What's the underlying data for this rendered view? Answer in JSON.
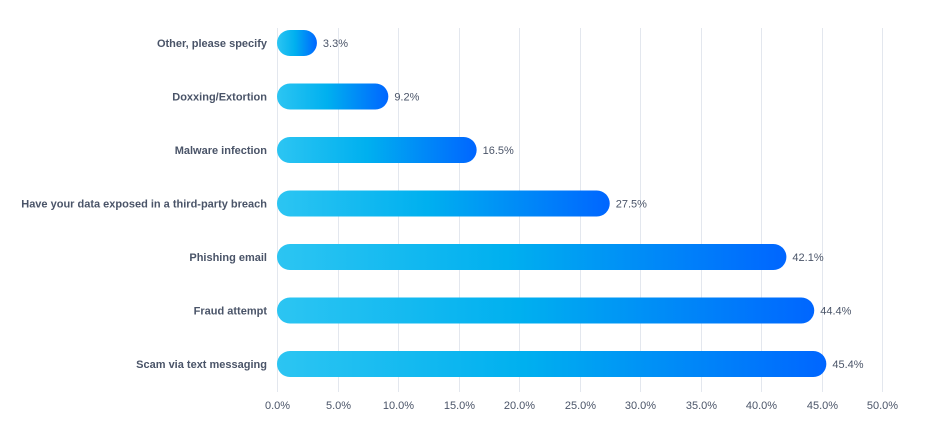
{
  "chart_data": {
    "type": "bar",
    "orientation": "horizontal",
    "title": "",
    "xlabel": "",
    "ylabel": "",
    "categories": [
      "Other, please specify",
      "Doxxing/Extortion",
      "Malware infection",
      "Have your data exposed in a third-party breach",
      "Phishing email",
      "Fraud attempt",
      "Scam via text messaging"
    ],
    "values": [
      3.3,
      9.2,
      16.5,
      27.5,
      42.1,
      44.4,
      45.4
    ],
    "value_labels": [
      "3.3%",
      "9.2%",
      "16.5%",
      "27.5%",
      "42.1%",
      "44.4%",
      "45.4%"
    ],
    "xlim": [
      0,
      50
    ],
    "ticks": [
      0,
      5,
      10,
      15,
      20,
      25,
      30,
      35,
      40,
      45,
      50
    ],
    "tick_labels": [
      "0.0%",
      "5.0%",
      "10.0%",
      "15.0%",
      "20.0%",
      "25.0%",
      "30.0%",
      "35.0%",
      "40.0%",
      "45.0%",
      "50.0%"
    ],
    "grid": true,
    "legend": "none",
    "colors": {
      "gradient_start": "#2cc5f2",
      "gradient_mid": "#00b0ef",
      "gradient_end": "#0066ff",
      "grid": "#e3e7ee",
      "text": "#4a5468"
    }
  }
}
